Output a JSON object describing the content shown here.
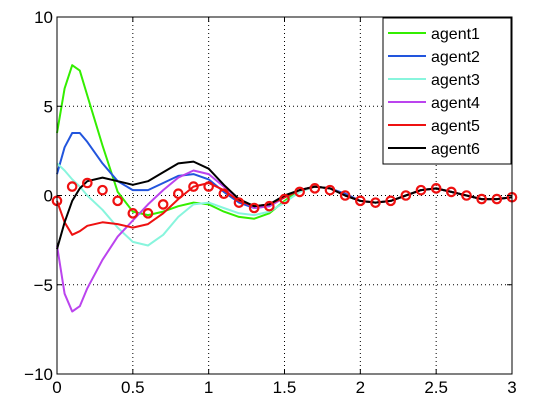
{
  "chart_data": {
    "type": "line",
    "title": "",
    "xlabel": "",
    "ylabel": "",
    "xlim": [
      0,
      3
    ],
    "ylim": [
      -10,
      10
    ],
    "x_ticks": [
      "0",
      "0.5",
      "1",
      "1.5",
      "2",
      "2.5",
      "3"
    ],
    "y_ticks": [
      "−10",
      "−5",
      "0",
      "5",
      "10"
    ],
    "grid": true,
    "legend_position": "top-right",
    "series": [
      {
        "name": "agent1",
        "color": "#33ee00",
        "style": "line",
        "x": [
          0,
          0.05,
          0.1,
          0.15,
          0.2,
          0.3,
          0.4,
          0.5,
          0.6,
          0.7,
          0.8,
          0.9,
          1.0,
          1.1,
          1.2,
          1.3,
          1.4,
          1.5,
          1.6,
          1.7,
          1.8,
          1.9,
          2.0,
          2.1,
          2.2,
          2.3,
          2.4,
          2.5,
          2.6,
          2.7,
          2.8,
          2.9,
          3.0
        ],
        "y": [
          3.5,
          6.0,
          7.3,
          7.0,
          5.6,
          2.8,
          0.2,
          -0.9,
          -1.1,
          -0.9,
          -0.6,
          -0.4,
          -0.5,
          -0.9,
          -1.2,
          -1.3,
          -1.0,
          -0.3,
          0.3,
          0.5,
          0.4,
          0.0,
          -0.3,
          -0.4,
          -0.3,
          0.0,
          0.3,
          0.4,
          0.2,
          0.0,
          -0.2,
          -0.2,
          -0.1
        ]
      },
      {
        "name": "agent2",
        "color": "#2255dd",
        "style": "line",
        "x": [
          0,
          0.05,
          0.1,
          0.15,
          0.2,
          0.3,
          0.4,
          0.5,
          0.6,
          0.7,
          0.8,
          0.9,
          1.0,
          1.1,
          1.2,
          1.3,
          1.4,
          1.5,
          1.6,
          1.7,
          1.8,
          1.9,
          2.0,
          2.1,
          2.2,
          2.3,
          2.4,
          2.5,
          2.6,
          2.7,
          2.8,
          2.9,
          3.0
        ],
        "y": [
          1.2,
          2.7,
          3.5,
          3.5,
          3.0,
          1.8,
          0.8,
          0.3,
          0.3,
          0.7,
          1.1,
          1.2,
          0.9,
          0.2,
          -0.4,
          -0.7,
          -0.6,
          -0.1,
          0.3,
          0.5,
          0.4,
          0.1,
          -0.3,
          -0.4,
          -0.3,
          0.0,
          0.3,
          0.4,
          0.2,
          0.0,
          -0.2,
          -0.2,
          -0.1
        ]
      },
      {
        "name": "agent3",
        "color": "#88f5dd",
        "style": "line",
        "x": [
          0,
          0.05,
          0.1,
          0.15,
          0.2,
          0.3,
          0.4,
          0.5,
          0.6,
          0.7,
          0.8,
          0.9,
          1.0,
          1.1,
          1.2,
          1.3,
          1.4,
          1.5,
          1.6,
          1.7,
          1.8,
          1.9,
          2.0,
          2.1,
          2.2,
          2.3,
          2.4,
          2.5,
          2.6,
          2.7,
          2.8,
          2.9,
          3.0
        ],
        "y": [
          1.8,
          1.4,
          0.9,
          0.5,
          0.0,
          -0.8,
          -1.8,
          -2.6,
          -2.8,
          -2.2,
          -1.2,
          -0.5,
          -0.4,
          -0.7,
          -1.0,
          -1.1,
          -0.9,
          -0.4,
          0.2,
          0.5,
          0.4,
          0.0,
          -0.3,
          -0.4,
          -0.3,
          0.0,
          0.3,
          0.4,
          0.2,
          0.0,
          -0.2,
          -0.2,
          -0.1
        ]
      },
      {
        "name": "agent4",
        "color": "#bb44ee",
        "style": "line",
        "x": [
          0,
          0.05,
          0.1,
          0.15,
          0.2,
          0.3,
          0.4,
          0.5,
          0.6,
          0.7,
          0.8,
          0.9,
          1.0,
          1.1,
          1.2,
          1.3,
          1.4,
          1.5,
          1.6,
          1.7,
          1.8,
          1.9,
          2.0,
          2.1,
          2.2,
          2.3,
          2.4,
          2.5,
          2.6,
          2.7,
          2.8,
          2.9,
          3.0
        ],
        "y": [
          -2.8,
          -5.5,
          -6.5,
          -6.2,
          -5.2,
          -3.6,
          -2.3,
          -1.4,
          -0.5,
          0.3,
          1.0,
          1.4,
          1.2,
          0.5,
          -0.2,
          -0.7,
          -0.6,
          -0.1,
          0.3,
          0.5,
          0.4,
          0.0,
          -0.3,
          -0.4,
          -0.3,
          0.0,
          0.3,
          0.4,
          0.2,
          0.0,
          -0.2,
          -0.2,
          -0.1
        ]
      },
      {
        "name": "agent5",
        "color": "#ee1111",
        "style": "line",
        "x": [
          0,
          0.05,
          0.1,
          0.15,
          0.2,
          0.3,
          0.4,
          0.5,
          0.6,
          0.7,
          0.8,
          0.9,
          1.0,
          1.1,
          1.2,
          1.3,
          1.4,
          1.5,
          1.6,
          1.7,
          1.8,
          1.9,
          2.0,
          2.1,
          2.2,
          2.3,
          2.4,
          2.5,
          2.6,
          2.7,
          2.8,
          2.9,
          3.0
        ],
        "y": [
          -0.3,
          -1.5,
          -2.2,
          -2.0,
          -1.7,
          -1.5,
          -1.6,
          -1.8,
          -1.6,
          -1.0,
          -0.2,
          0.5,
          0.7,
          0.3,
          -0.3,
          -0.6,
          -0.5,
          -0.1,
          0.3,
          0.5,
          0.4,
          0.0,
          -0.3,
          -0.4,
          -0.3,
          0.0,
          0.3,
          0.4,
          0.2,
          0.0,
          -0.2,
          -0.2,
          -0.1
        ]
      },
      {
        "name": "agent6",
        "color": "#000000",
        "style": "line",
        "x": [
          0,
          0.05,
          0.1,
          0.15,
          0.2,
          0.3,
          0.4,
          0.5,
          0.6,
          0.7,
          0.8,
          0.9,
          1.0,
          1.1,
          1.2,
          1.3,
          1.4,
          1.5,
          1.6,
          1.7,
          1.8,
          1.9,
          2.0,
          2.1,
          2.2,
          2.3,
          2.4,
          2.5,
          2.6,
          2.7,
          2.8,
          2.9,
          3.0
        ],
        "y": [
          -3.0,
          -1.5,
          -0.3,
          0.4,
          0.8,
          1.0,
          0.8,
          0.6,
          0.8,
          1.3,
          1.8,
          1.9,
          1.5,
          0.6,
          -0.2,
          -0.6,
          -0.5,
          0.0,
          0.3,
          0.5,
          0.4,
          0.0,
          -0.3,
          -0.4,
          -0.3,
          0.0,
          0.3,
          0.4,
          0.2,
          0.0,
          -0.2,
          -0.2,
          -0.1
        ]
      },
      {
        "name": "",
        "color": "#ee1111",
        "style": "markers",
        "x": [
          0,
          0.1,
          0.2,
          0.3,
          0.4,
          0.5,
          0.6,
          0.7,
          0.8,
          0.9,
          1.0,
          1.1,
          1.2,
          1.3,
          1.4,
          1.5,
          1.6,
          1.7,
          1.8,
          1.9,
          2.0,
          2.1,
          2.2,
          2.3,
          2.4,
          2.5,
          2.6,
          2.7,
          2.8,
          2.9,
          3.0
        ],
        "y": [
          -0.3,
          0.5,
          0.7,
          0.3,
          -0.3,
          -1.0,
          -1.0,
          -0.5,
          0.1,
          0.5,
          0.5,
          0.1,
          -0.4,
          -0.7,
          -0.6,
          -0.2,
          0.2,
          0.4,
          0.3,
          0.0,
          -0.3,
          -0.4,
          -0.3,
          0.0,
          0.3,
          0.4,
          0.2,
          0.0,
          -0.2,
          -0.2,
          -0.1
        ]
      }
    ]
  }
}
